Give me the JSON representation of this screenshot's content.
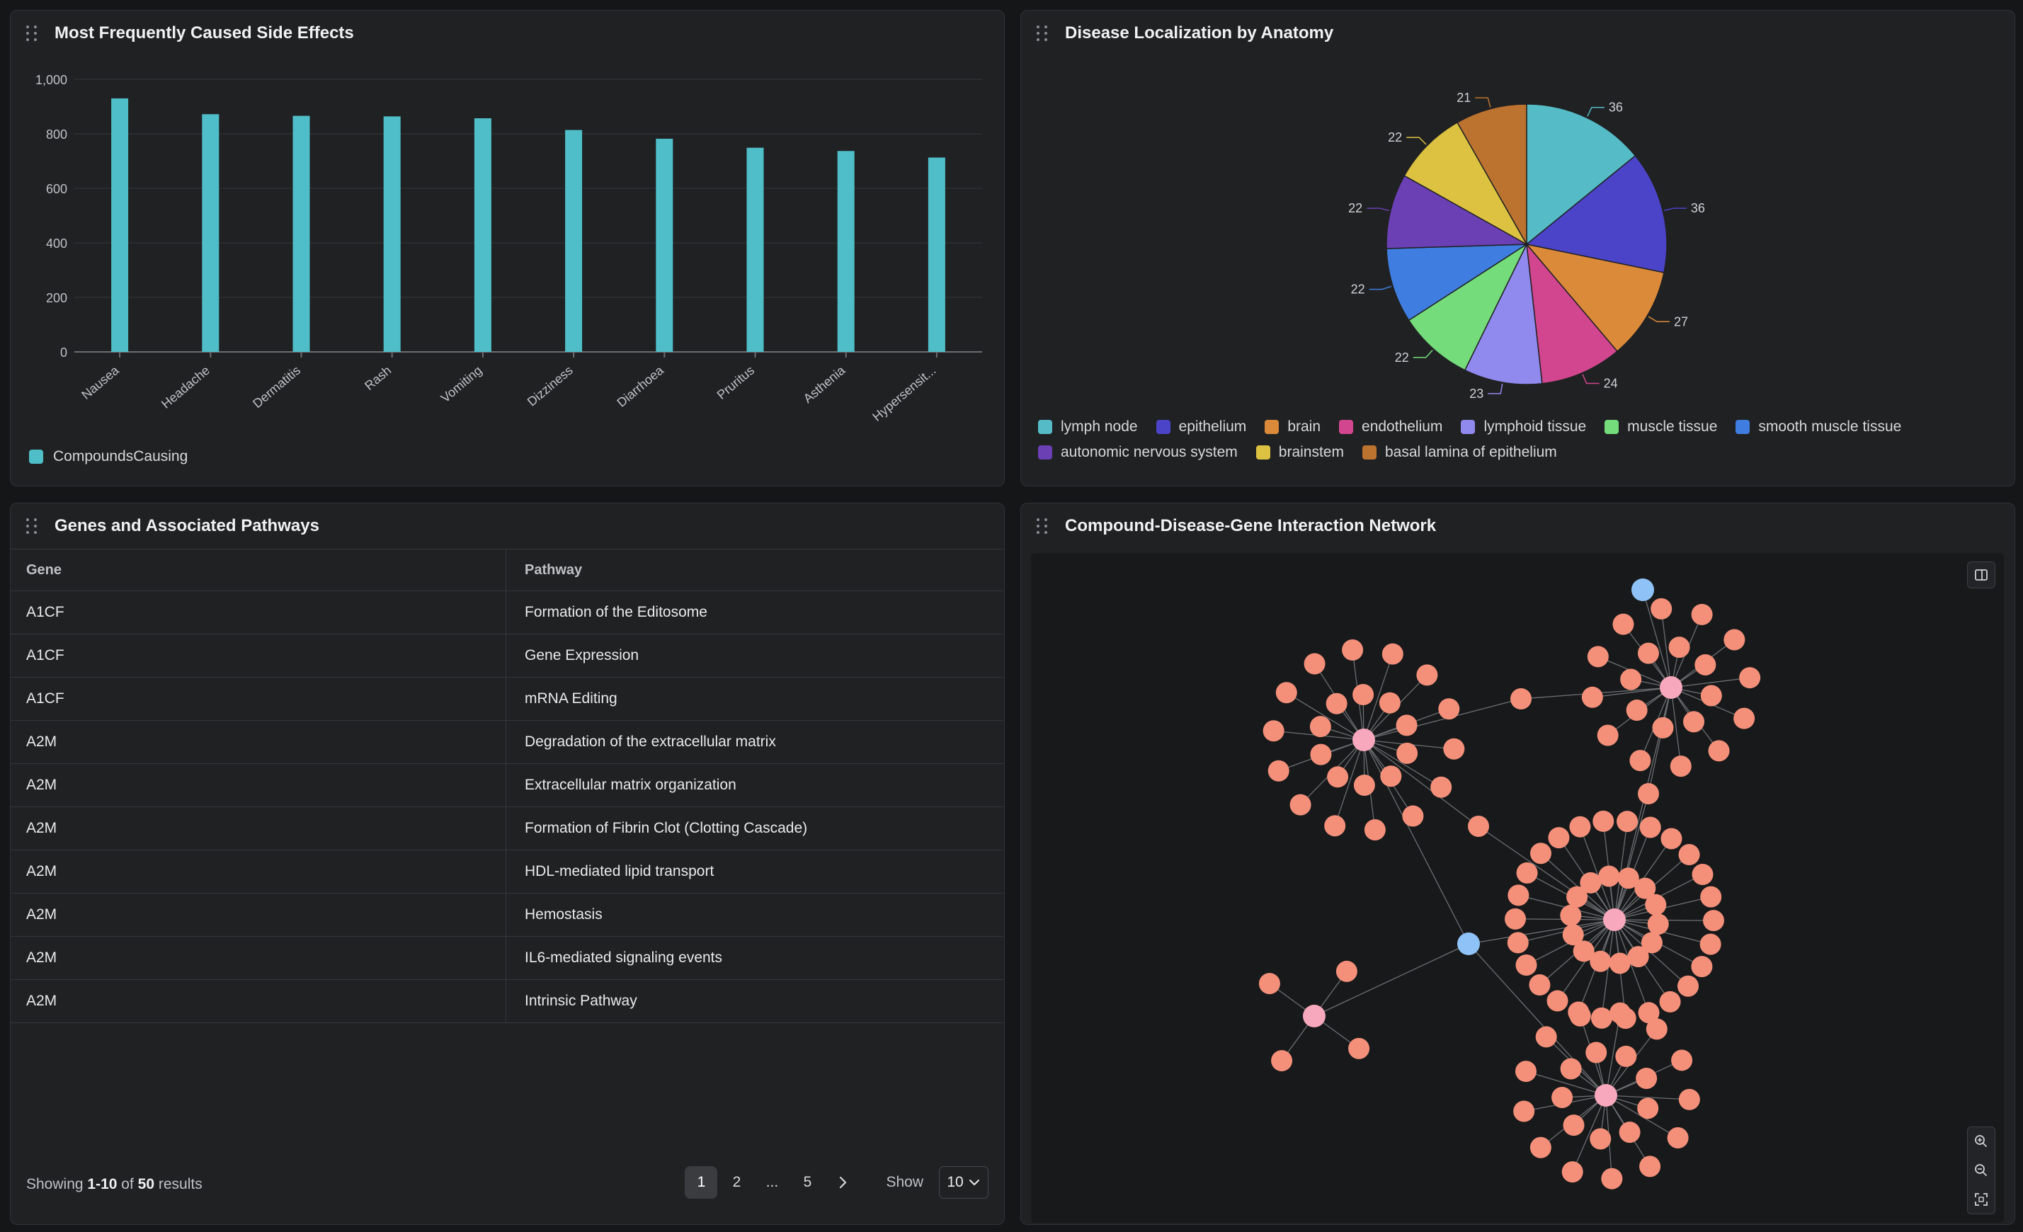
{
  "bar_panel": {
    "title": "Most Frequently Caused Side Effects",
    "legend_label": "CompoundsCausing",
    "bar_color": "#4fbec8"
  },
  "pie_panel": {
    "title": "Disease Localization by Anatomy"
  },
  "table_panel": {
    "title": "Genes and Associated Pathways",
    "columns": {
      "gene": "Gene",
      "pathway": "Pathway"
    },
    "rows": [
      {
        "gene": "A1CF",
        "pathway": "Formation of the Editosome"
      },
      {
        "gene": "A1CF",
        "pathway": "Gene Expression"
      },
      {
        "gene": "A1CF",
        "pathway": "mRNA Editing"
      },
      {
        "gene": "A2M",
        "pathway": "Degradation of the extracellular matrix"
      },
      {
        "gene": "A2M",
        "pathway": "Extracellular matrix organization"
      },
      {
        "gene": "A2M",
        "pathway": "Formation of Fibrin Clot (Clotting Cascade)"
      },
      {
        "gene": "A2M",
        "pathway": "HDL-mediated lipid transport"
      },
      {
        "gene": "A2M",
        "pathway": "Hemostasis"
      },
      {
        "gene": "A2M",
        "pathway": "IL6-mediated signaling events"
      },
      {
        "gene": "A2M",
        "pathway": "Intrinsic Pathway"
      }
    ],
    "footer": {
      "showing_prefix": "Showing",
      "range": "1-10",
      "of": "of",
      "total": "50",
      "suffix": "results",
      "pages": [
        "1",
        "2",
        "...",
        "5"
      ],
      "current_page": "1",
      "show_label": "Show",
      "page_size": "10"
    }
  },
  "network_panel": {
    "title": "Compound-Disease-Gene Interaction Network",
    "colors": {
      "gene": "#f4907a",
      "hub": "#f7a8bc",
      "compound": "#8fc3f7"
    },
    "icons": [
      "sidebar-toggle-icon",
      "zoom-in-icon",
      "zoom-out-icon",
      "fit-view-icon"
    ]
  },
  "chart_data": [
    {
      "type": "bar",
      "categories": [
        "Nausea",
        "Headache",
        "Dermatitis",
        "Rash",
        "Vomiting",
        "Dizziness",
        "Diarrhoea",
        "Pruritus",
        "Asthenia",
        "Hypersensit..."
      ],
      "series": [
        {
          "name": "CompoundsCausing",
          "values": [
            930,
            872,
            866,
            864,
            857,
            814,
            782,
            749,
            737,
            713
          ]
        }
      ],
      "ylim": [
        0,
        1000
      ],
      "yticks": [
        0,
        200,
        400,
        600,
        800,
        1000
      ],
      "ytick_labels": [
        "0",
        "200",
        "400",
        "600",
        "800",
        "1,000"
      ],
      "grid": true,
      "legend": "bottom-left"
    },
    {
      "type": "pie",
      "labels": [
        "lymph node",
        "epithelium",
        "brain",
        "endothelium",
        "lymphoid tissue",
        "muscle tissue",
        "smooth muscle tissue",
        "autonomic nervous system",
        "brainstem",
        "basal lamina of epithelium"
      ],
      "values": [
        36,
        36,
        27,
        24,
        23,
        22,
        22,
        22,
        22,
        21
      ],
      "colors": [
        "#55bcc7",
        "#4b44c9",
        "#db8a3a",
        "#d2468f",
        "#9089ee",
        "#74dc7a",
        "#3f7ee0",
        "#6a40b4",
        "#dcc240",
        "#bd7330"
      ],
      "legend": "bottom"
    }
  ]
}
